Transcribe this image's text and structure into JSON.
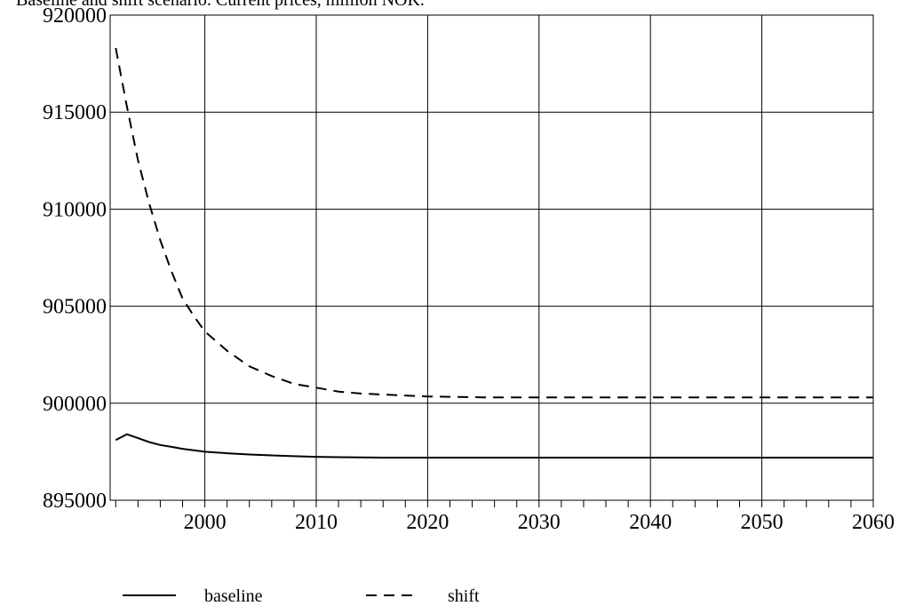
{
  "chart_data": {
    "type": "line",
    "title": "Baseline and shift scenario. Current prices, million NOK.",
    "xlabel": "",
    "ylabel": "",
    "xlim": [
      1991.5,
      2060
    ],
    "ylim": [
      895000,
      920000
    ],
    "x_ticks": [
      2000,
      2010,
      2020,
      2030,
      2040,
      2050,
      2060
    ],
    "y_ticks": [
      895000,
      900000,
      905000,
      910000,
      915000,
      920000
    ],
    "grid": true,
    "legend_position": "bottom",
    "series": [
      {
        "name": "baseline",
        "style": "solid",
        "color": "#000000",
        "x": [
          1992,
          1993,
          1994,
          1995,
          1996,
          1997,
          1998,
          1999,
          2000,
          2002,
          2004,
          2006,
          2008,
          2010,
          2012,
          2014,
          2016,
          2018,
          2020,
          2025,
          2030,
          2040,
          2050,
          2060
        ],
        "y": [
          898100,
          898400,
          898200,
          898000,
          897850,
          897750,
          897650,
          897580,
          897500,
          897420,
          897360,
          897310,
          897270,
          897240,
          897220,
          897210,
          897200,
          897200,
          897200,
          897200,
          897200,
          897200,
          897200,
          897200
        ]
      },
      {
        "name": "shift",
        "style": "dashed",
        "color": "#000000",
        "x": [
          1992,
          1993,
          1994,
          1995,
          1996,
          1997,
          1998,
          1999,
          2000,
          2002,
          2004,
          2006,
          2008,
          2010,
          2012,
          2014,
          2016,
          2018,
          2020,
          2025,
          2030,
          2040,
          2050,
          2060
        ],
        "y": [
          918300,
          915300,
          912500,
          910300,
          908400,
          906800,
          905400,
          904500,
          903700,
          902700,
          901900,
          901400,
          901000,
          900800,
          900600,
          900500,
          900450,
          900400,
          900350,
          900300,
          900300,
          900300,
          900300,
          900300
        ]
      }
    ]
  }
}
